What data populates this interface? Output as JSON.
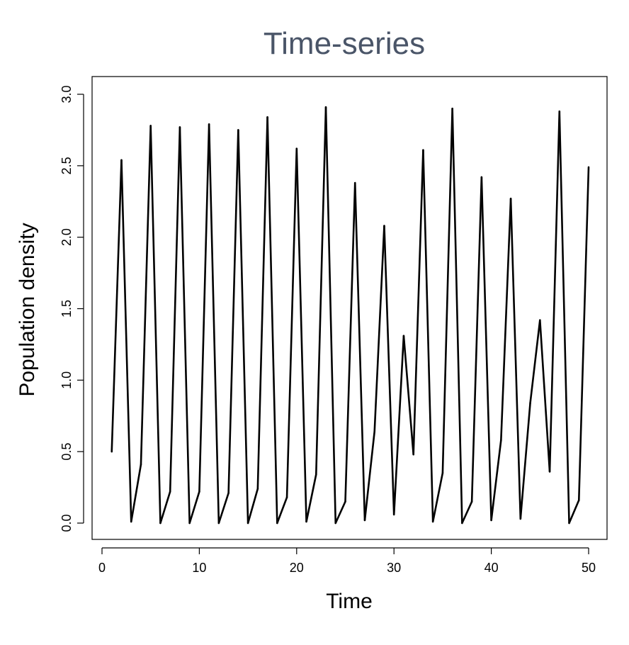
{
  "chart_data": {
    "type": "line",
    "title": "Time-series",
    "xlabel": "Time",
    "ylabel": "Population density",
    "xlim": [
      1,
      50
    ],
    "ylim": [
      0,
      3.0
    ],
    "x_ticks": [
      0,
      10,
      20,
      30,
      40,
      50
    ],
    "x_tick_labels": [
      "0",
      "10",
      "20",
      "30",
      "40",
      "50"
    ],
    "y_ticks": [
      0,
      0.5,
      1.0,
      1.5,
      2.0,
      2.5,
      3.0
    ],
    "y_tick_labels": [
      "0.0",
      "0.5",
      "1.0",
      "1.5",
      "2.0",
      "2.5",
      "3.0"
    ],
    "grid": false,
    "series": [
      {
        "color": "#000000",
        "x": [
          1,
          2,
          3,
          4,
          5,
          6,
          7,
          8,
          9,
          10,
          11,
          12,
          13,
          14,
          15,
          16,
          17,
          18,
          19,
          20,
          21,
          22,
          23,
          24,
          25,
          26,
          27,
          28,
          29,
          30,
          31,
          32,
          33,
          34,
          35,
          36,
          37,
          38,
          39,
          40,
          41,
          42,
          43,
          44,
          45,
          46,
          47,
          48,
          49,
          50
        ],
        "y": [
          0.5,
          2.54,
          0.01,
          0.41,
          2.78,
          0.0,
          0.22,
          2.77,
          0.0,
          0.22,
          2.79,
          0.0,
          0.21,
          2.75,
          0.0,
          0.24,
          2.84,
          0.0,
          0.18,
          2.62,
          0.01,
          0.34,
          2.91,
          0.0,
          0.15,
          2.38,
          0.02,
          0.64,
          2.08,
          0.06,
          1.31,
          0.48,
          2.61,
          0.01,
          0.35,
          2.9,
          0.0,
          0.15,
          2.42,
          0.02,
          0.58,
          2.27,
          0.03,
          0.84,
          1.42,
          0.36,
          2.88,
          0.0,
          0.16,
          2.49
        ]
      }
    ]
  }
}
